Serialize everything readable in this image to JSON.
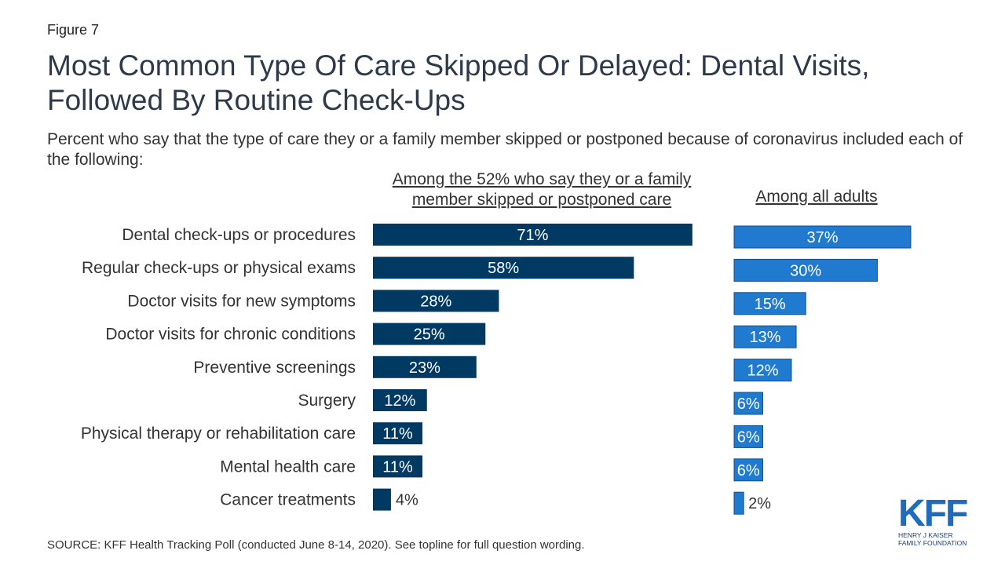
{
  "figure_label": "Figure 7",
  "title": "Most Common Type Of Care Skipped Or Delayed: Dental Visits, Followed By Routine Check-Ups",
  "subtitle": "Percent who say that the type of care they or a family member skipped or postponed because of coronavirus included each of the following:",
  "source": "SOURCE: KFF Health Tracking Poll (conducted June 8-14, 2020). See topline for full question wording.",
  "logo": {
    "mark": "KFF",
    "line1": "HENRY J KAISER",
    "line2": "FAMILY FOUNDATION"
  },
  "colors": {
    "series1": "#003a63",
    "series2": "#1f7ad0"
  },
  "chart_data": {
    "type": "bar",
    "orientation": "horizontal",
    "categories": [
      "Dental check-ups or procedures",
      "Regular check-ups or physical exams",
      "Doctor visits for new symptoms",
      "Doctor visits for chronic conditions",
      "Preventive screenings",
      "Surgery",
      "Physical therapy or rehabilitation care",
      "Mental health care",
      "Cancer treatments"
    ],
    "series": [
      {
        "name": "Among the 52% who say they or a family member skipped or postponed care",
        "values": [
          71,
          58,
          28,
          25,
          23,
          12,
          11,
          11,
          4
        ]
      },
      {
        "name": "Among all adults",
        "values": [
          37,
          30,
          15,
          13,
          12,
          6,
          6,
          6,
          2
        ]
      }
    ],
    "value_suffix": "%",
    "legend": "none",
    "grid": false
  }
}
